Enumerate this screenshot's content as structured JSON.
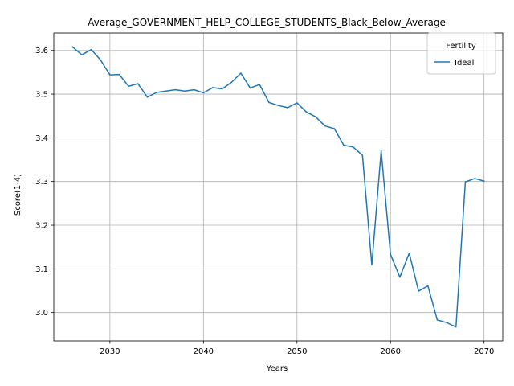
{
  "chart_data": {
    "type": "line",
    "title": "Average_GOVERNMENT_HELP_COLLEGE_STUDENTS_Black_Below_Average",
    "xlabel": "Years",
    "ylabel": "Score(1-4)",
    "xlim": [
      2024,
      2072
    ],
    "ylim": [
      2.935,
      3.64
    ],
    "xticks": [
      2030,
      2040,
      2050,
      2060,
      2070
    ],
    "yticks": [
      3.0,
      3.1,
      3.2,
      3.3,
      3.4,
      3.5,
      3.6
    ],
    "xtick_labels": [
      "2030",
      "2040",
      "2050",
      "2060",
      "2070"
    ],
    "ytick_labels": [
      "3.0",
      "3.1",
      "3.2",
      "3.3",
      "3.4",
      "3.5",
      "3.6"
    ],
    "grid": true,
    "legend": {
      "title": "Fertility",
      "position": "top-right"
    },
    "x": [
      2026,
      2027,
      2028,
      2029,
      2030,
      2031,
      2032,
      2033,
      2034,
      2035,
      2036,
      2037,
      2038,
      2039,
      2040,
      2041,
      2042,
      2043,
      2044,
      2045,
      2046,
      2047,
      2048,
      2049,
      2050,
      2051,
      2052,
      2053,
      2054,
      2055,
      2056,
      2057,
      2058,
      2059,
      2060,
      2061,
      2062,
      2063,
      2064,
      2065,
      2066,
      2067,
      2068,
      2069,
      2070
    ],
    "series": [
      {
        "name": "Ideal",
        "color": "#1f77b4",
        "values": [
          3.608,
          3.59,
          3.602,
          3.578,
          3.544,
          3.545,
          3.518,
          3.524,
          3.493,
          3.504,
          3.507,
          3.51,
          3.507,
          3.51,
          3.503,
          3.515,
          3.512,
          3.527,
          3.548,
          3.514,
          3.522,
          3.481,
          3.474,
          3.469,
          3.48,
          3.459,
          3.448,
          3.427,
          3.421,
          3.383,
          3.379,
          3.36,
          3.109,
          3.37,
          3.133,
          3.081,
          3.136,
          3.049,
          3.061,
          2.983,
          2.977,
          2.967,
          3.299,
          3.307,
          3.301
        ]
      }
    ]
  }
}
